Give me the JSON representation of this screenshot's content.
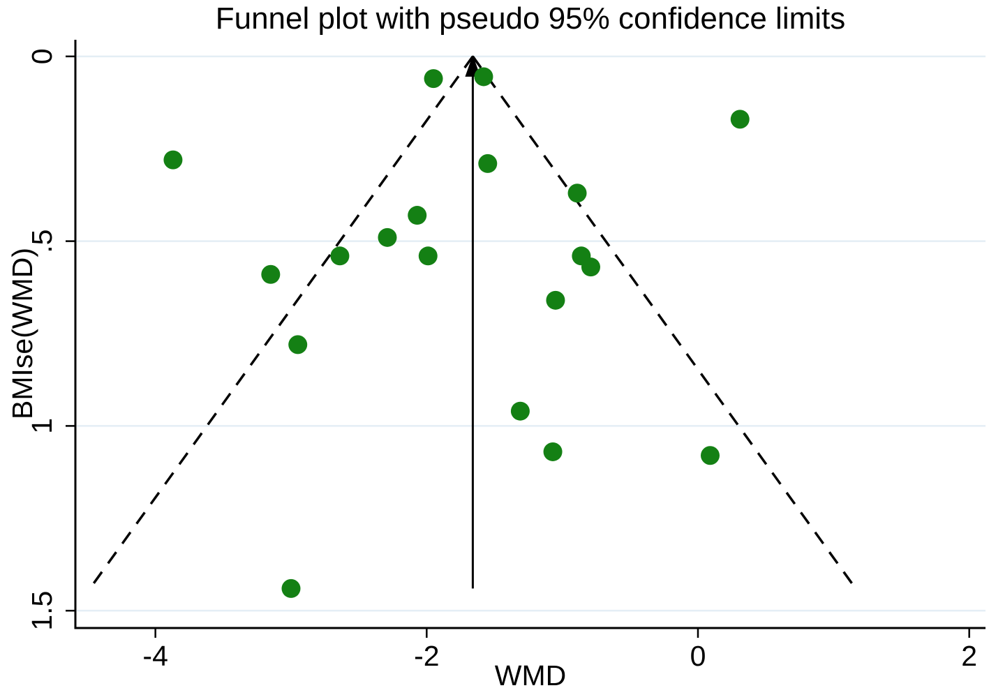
{
  "chart_data": {
    "type": "scatter",
    "title": "Funnel plot with pseudo 95% confidence limits",
    "xlabel": "WMD",
    "ylabel": "BMIse(WMD)",
    "xlim": [
      -4.59,
      2.12
    ],
    "ylim": [
      -0.045,
      1.545
    ],
    "y_inverted": true,
    "grid": "horizontal-only",
    "x_ticks": [
      -4,
      -2,
      0,
      2
    ],
    "x_tick_labels": [
      "-4",
      "-2",
      "0",
      "2"
    ],
    "y_ticks": [
      0,
      0.5,
      1,
      1.5
    ],
    "y_tick_labels": [
      "0",
      ".5",
      "1",
      "1.5"
    ],
    "series": [
      {
        "name": "studies",
        "marker": "circle",
        "marker_color": "#148014",
        "points": [
          {
            "wmd": -1.95,
            "se": 0.06
          },
          {
            "wmd": -1.58,
            "se": 0.055
          },
          {
            "wmd": 0.31,
            "se": 0.17
          },
          {
            "wmd": -3.87,
            "se": 0.28
          },
          {
            "wmd": -1.55,
            "se": 0.29
          },
          {
            "wmd": -0.89,
            "se": 0.37
          },
          {
            "wmd": -2.07,
            "se": 0.43
          },
          {
            "wmd": -2.29,
            "se": 0.49
          },
          {
            "wmd": -2.64,
            "se": 0.54
          },
          {
            "wmd": -1.99,
            "se": 0.54
          },
          {
            "wmd": -0.86,
            "se": 0.54
          },
          {
            "wmd": -0.79,
            "se": 0.57
          },
          {
            "wmd": -3.15,
            "se": 0.59
          },
          {
            "wmd": -1.05,
            "se": 0.66
          },
          {
            "wmd": -2.95,
            "se": 0.78
          },
          {
            "wmd": -1.31,
            "se": 0.96
          },
          {
            "wmd": -1.07,
            "se": 1.07
          },
          {
            "wmd": 0.09,
            "se": 1.08
          },
          {
            "wmd": -3.0,
            "se": 1.44
          }
        ]
      }
    ],
    "funnel": {
      "center_wmd": -1.66,
      "ci_multiplier": 1.96,
      "se_top": 0,
      "se_bottom": 1.43,
      "line_style": "dashed"
    },
    "center_line": {
      "wmd": -1.66,
      "se_from": 0,
      "se_to": 1.44,
      "arrow": "up"
    },
    "colors": {
      "marker": "#148014",
      "axis": "#000000",
      "gridline": "#e4eef5",
      "text": "#000000",
      "background": "#ffffff"
    }
  }
}
